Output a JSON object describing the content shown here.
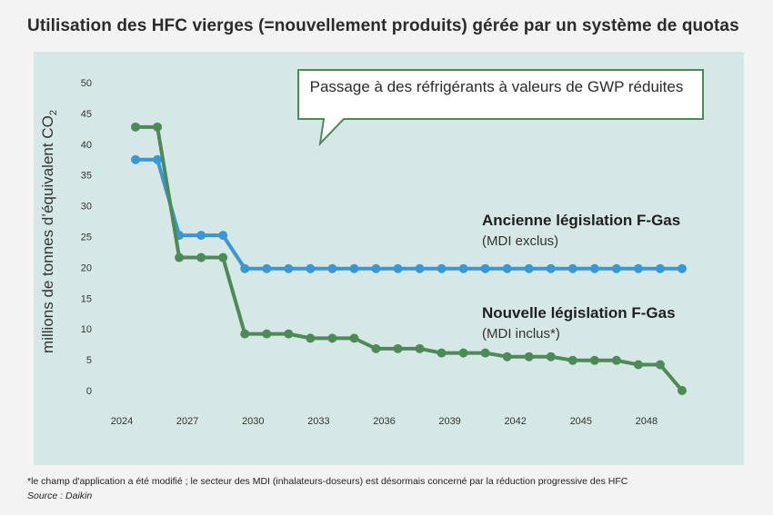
{
  "chart_data": {
    "type": "line",
    "title": "Utilisation des HFC vierges (=nouvellement produits) gérée par un système de quotas",
    "ylabel": "millions de tonnes d'équivalent CO2",
    "xlabel": "",
    "ylim": [
      0,
      50
    ],
    "xlim": [
      2024,
      2050
    ],
    "x_ticks": [
      "2024",
      "2027",
      "2030",
      "2033",
      "2036",
      "2039",
      "2042",
      "2045",
      "2048"
    ],
    "y_ticks": [
      "0",
      "5",
      "10",
      "15",
      "20",
      "25",
      "30",
      "35",
      "40",
      "45",
      "50"
    ],
    "grid": false,
    "series": [
      {
        "name": "Ancienne législation F-Gas",
        "subtitle": "(MDI exclus)",
        "color": "#3a97d6",
        "points": [
          [
            2025,
            37.5
          ],
          [
            2026,
            37.5
          ],
          [
            2027,
            25.2
          ],
          [
            2028,
            25.2
          ],
          [
            2029,
            25.2
          ],
          [
            2030,
            19.8
          ],
          [
            2031,
            19.8
          ],
          [
            2032,
            19.8
          ],
          [
            2033,
            19.8
          ],
          [
            2034,
            19.8
          ],
          [
            2035,
            19.8
          ],
          [
            2036,
            19.8
          ],
          [
            2037,
            19.8
          ],
          [
            2038,
            19.8
          ],
          [
            2039,
            19.8
          ],
          [
            2040,
            19.8
          ],
          [
            2041,
            19.8
          ],
          [
            2042,
            19.8
          ],
          [
            2043,
            19.8
          ],
          [
            2044,
            19.8
          ],
          [
            2045,
            19.8
          ],
          [
            2046,
            19.8
          ],
          [
            2047,
            19.8
          ],
          [
            2048,
            19.8
          ],
          [
            2049,
            19.8
          ],
          [
            2050,
            19.8
          ]
        ]
      },
      {
        "name": "Nouvelle législation F-Gas",
        "subtitle": "(MDI inclus*)",
        "color": "#4e8a57",
        "points": [
          [
            2025,
            42.8
          ],
          [
            2026,
            42.8
          ],
          [
            2027,
            21.6
          ],
          [
            2028,
            21.6
          ],
          [
            2029,
            21.6
          ],
          [
            2030,
            9.2
          ],
          [
            2031,
            9.2
          ],
          [
            2032,
            9.2
          ],
          [
            2033,
            8.5
          ],
          [
            2034,
            8.5
          ],
          [
            2035,
            8.5
          ],
          [
            2036,
            6.8
          ],
          [
            2037,
            6.8
          ],
          [
            2038,
            6.8
          ],
          [
            2039,
            6.1
          ],
          [
            2040,
            6.1
          ],
          [
            2041,
            6.1
          ],
          [
            2042,
            5.5
          ],
          [
            2043,
            5.5
          ],
          [
            2044,
            5.5
          ],
          [
            2045,
            4.9
          ],
          [
            2046,
            4.9
          ],
          [
            2047,
            4.9
          ],
          [
            2048,
            4.2
          ],
          [
            2049,
            4.2
          ],
          [
            2050,
            0
          ]
        ]
      }
    ],
    "annotation": "Passage à des réfrigérants à valeurs de GWP réduites"
  },
  "footnote": "*le champ d'application a été modifié ; le secteur des MDI (inhalateurs-doseurs) est désormais concerné par la réduction progressive des HFC",
  "source": "Source : Daikin"
}
